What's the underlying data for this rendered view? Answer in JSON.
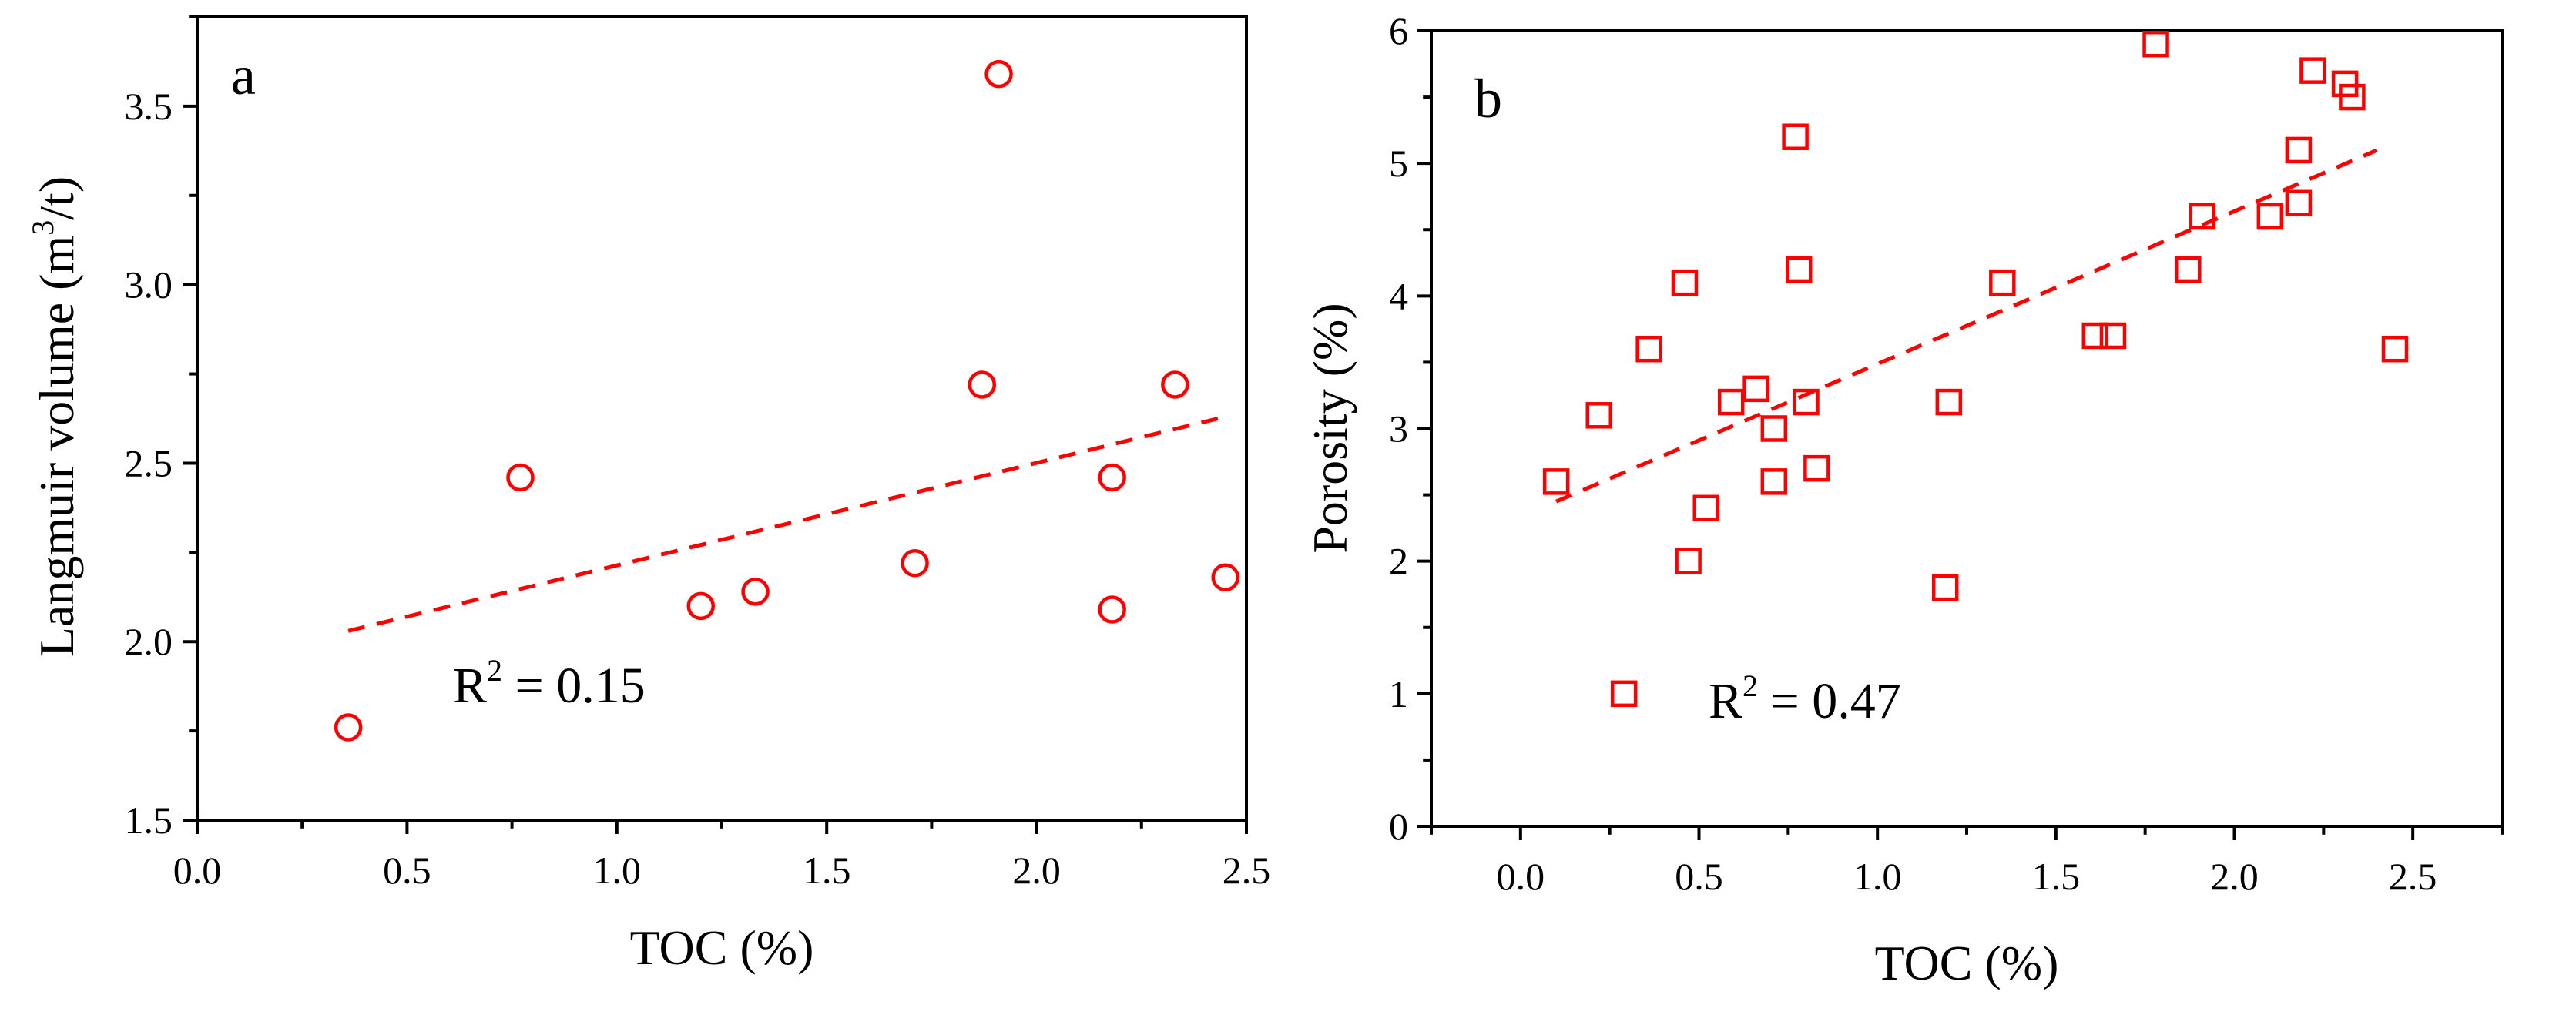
{
  "colors": {
    "marker": "#ff0000",
    "fit": "#ff0000",
    "axis": "#000000"
  },
  "chart_data": [
    {
      "type": "scatter",
      "panel_label": "a",
      "xlabel": "TOC (%)",
      "ylabel_main": "Langmuir volume (m",
      "ylabel_sup": "3",
      "ylabel_end": "/t)",
      "xlim": [
        0.0,
        2.5
      ],
      "ylim": [
        1.5,
        3.75
      ],
      "xticks": [
        0.0,
        0.5,
        1.0,
        1.5,
        2.0,
        2.5
      ],
      "xtick_labels": [
        "0.0",
        "0.5",
        "1.0",
        "1.5",
        "2.0",
        "2.5"
      ],
      "yticks": [
        1.5,
        2.0,
        2.5,
        3.0,
        3.5
      ],
      "ytick_labels": [
        "1.5",
        "2.0",
        "2.5",
        "3.0",
        "3.5"
      ],
      "marker_shape": "circle",
      "series": [
        {
          "name": "samples",
          "points": [
            [
              0.36,
              1.76
            ],
            [
              0.77,
              2.46
            ],
            [
              1.2,
              2.1
            ],
            [
              1.33,
              2.14
            ],
            [
              1.71,
              2.22
            ],
            [
              1.87,
              2.72
            ],
            [
              1.91,
              3.59
            ],
            [
              2.18,
              2.46
            ],
            [
              2.18,
              2.09
            ],
            [
              2.33,
              2.72
            ],
            [
              2.45,
              2.18
            ]
          ]
        }
      ],
      "fit": {
        "x": [
          0.36,
          2.45
        ],
        "y": [
          2.03,
          2.63
        ]
      },
      "r2_prefix": "R",
      "r2_sup": "2",
      "r2_value": " = 0.15"
    },
    {
      "type": "scatter",
      "panel_label": "b",
      "xlabel": "TOC (%)",
      "ylabel": "Porosity (%)",
      "xlim": [
        -0.25,
        2.75
      ],
      "ylim": [
        0,
        6
      ],
      "xticks": [
        0.0,
        0.5,
        1.0,
        1.5,
        2.0,
        2.5
      ],
      "xtick_labels": [
        "0.0",
        "0.5",
        "1.0",
        "1.5",
        "2.0",
        "2.5"
      ],
      "yticks": [
        0,
        1,
        2,
        3,
        4,
        5,
        6
      ],
      "ytick_labels": [
        "0",
        "1",
        "2",
        "3",
        "4",
        "5",
        "6"
      ],
      "marker_shape": "square",
      "series": [
        {
          "name": "samples",
          "points": [
            [
              0.1,
              2.6
            ],
            [
              0.22,
              3.1
            ],
            [
              0.36,
              3.6
            ],
            [
              0.46,
              4.1
            ],
            [
              0.47,
              2.0
            ],
            [
              0.52,
              2.4
            ],
            [
              0.59,
              3.2
            ],
            [
              0.66,
              3.3
            ],
            [
              0.71,
              3.0
            ],
            [
              0.71,
              2.6
            ],
            [
              0.77,
              5.2
            ],
            [
              0.78,
              4.2
            ],
            [
              0.8,
              3.2
            ],
            [
              0.83,
              2.7
            ],
            [
              1.19,
              1.8
            ],
            [
              1.2,
              3.2
            ],
            [
              1.35,
              4.1
            ],
            [
              1.61,
              3.7
            ],
            [
              1.66,
              3.7
            ],
            [
              1.78,
              5.9
            ],
            [
              1.87,
              4.2
            ],
            [
              1.91,
              4.6
            ],
            [
              2.1,
              4.6
            ],
            [
              2.18,
              4.7
            ],
            [
              2.18,
              5.1
            ],
            [
              2.22,
              5.7
            ],
            [
              2.31,
              5.6
            ],
            [
              2.33,
              5.5
            ],
            [
              2.45,
              3.6
            ]
          ]
        }
      ],
      "fit": {
        "x": [
          0.1,
          2.4
        ],
        "y": [
          2.45,
          5.1
        ]
      },
      "legend_marker": [
        0.29,
        1.0
      ],
      "r2_prefix": "R",
      "r2_sup": "2",
      "r2_value": " = 0.47"
    }
  ]
}
